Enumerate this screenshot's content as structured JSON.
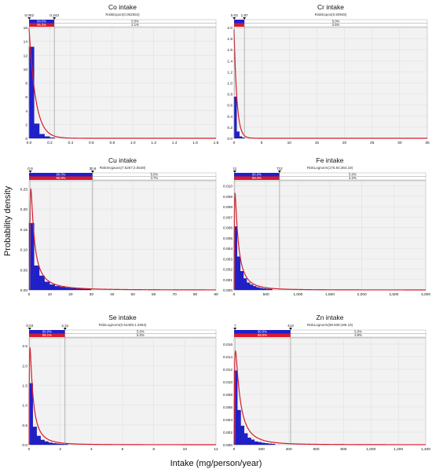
{
  "axes": {
    "ylabel": "Probability density",
    "xlabel": "Intake (mg/person/year)"
  },
  "colors": {
    "bar": "#1f1fd0",
    "curve": "#d81a2a",
    "band_top": "#1f1fd0",
    "band_bottom": "#d81a2a",
    "plot_bg": "#f2f2f2",
    "grid": "#dddddd"
  },
  "chart_data": [
    {
      "type": "bar",
      "title": "Co intake",
      "subtitle": "RiskExpon(0.062594)",
      "x_ticks": [
        "0.0",
        "0.2",
        "0.4",
        "0.6",
        "0.8",
        "1.0",
        "1.2",
        "1.4",
        "1.6",
        "1.8"
      ],
      "xlim": [
        0,
        1.8
      ],
      "y_ticks": [
        "0",
        "2",
        "4",
        "6",
        "8",
        "10",
        "12",
        "14",
        "16"
      ],
      "ylim": [
        0,
        16
      ],
      "bin_width": 0.05,
      "bins": [
        13.2,
        2.1,
        0.6,
        0.25,
        0.08
      ],
      "curve": {
        "dist": "expon",
        "params": [
          0.062594
        ]
      },
      "lower_marker": "0.002",
      "upper_marker": "0.243",
      "marker_values": [
        0.002,
        0.243
      ],
      "band": {
        "top": [
          "90.0%",
          "5.0%"
        ],
        "bottom": [
          "95.3%",
          "2.1%"
        ]
      }
    },
    {
      "type": "bar",
      "title": "Cr intake",
      "subtitle": "RiskExpon(0.50945)",
      "x_ticks": [
        "0",
        "5",
        "10",
        "15",
        "20",
        "25",
        "30",
        "35"
      ],
      "xlim": [
        0,
        35
      ],
      "y_ticks": [
        "0.0",
        "0.2",
        "0.4",
        "0.6",
        "0.8",
        "1.0",
        "1.2",
        "1.4",
        "1.6",
        "1.8",
        "2.0"
      ],
      "ylim": [
        0,
        2.0
      ],
      "bin_width": 0.5,
      "bins": [
        0.75,
        0.12,
        0.03,
        0.01
      ],
      "curve": {
        "dist": "expon",
        "params": [
          0.50945
        ]
      },
      "lower_marker": "0.03",
      "upper_marker": "1.87",
      "marker_values": [
        0.03,
        1.87
      ],
      "band": {
        "top": [
          "",
          "5.0%"
        ],
        "bottom": [
          "",
          "2.5%"
        ]
      }
    },
    {
      "type": "bar",
      "title": "Cu intake",
      "subtitle": "RiskInvgauss(7.5267;2.5549)",
      "x_ticks": [
        "0",
        "10",
        "20",
        "30",
        "40",
        "50",
        "60",
        "70",
        "80",
        "90"
      ],
      "xlim": [
        0,
        90
      ],
      "y_ticks": [
        "0.00",
        "0.05",
        "0.10",
        "0.15",
        "0.20",
        "0.25"
      ],
      "ylim": [
        0,
        0.27
      ],
      "bin_width": 2.5,
      "bins": [
        0.165,
        0.06,
        0.035,
        0.02,
        0.013,
        0.009,
        0.007,
        0.005,
        0.004,
        0.003,
        0.0025,
        0.002
      ],
      "curve": {
        "dist": "invgauss",
        "params": [
          7.5267,
          2.5549
        ]
      },
      "lower_marker": "0.6",
      "upper_marker": "30.6",
      "marker_values": [
        0.6,
        30.6
      ],
      "band": {
        "top": [
          "90.0%",
          "5.0%"
        ],
        "bottom": [
          "90.9%",
          "4.7%"
        ]
      }
    },
    {
      "type": "bar",
      "title": "Fe intake",
      "subtitle": "RiskLognorm(175.84;364.19)",
      "x_ticks": [
        "0",
        "500",
        "1,000",
        "1,500",
        "2,000",
        "2,500",
        "3,000"
      ],
      "xlim": [
        0,
        3000
      ],
      "y_ticks": [
        "0.000",
        "0.001",
        "0.002",
        "0.003",
        "0.004",
        "0.005",
        "0.006",
        "0.007",
        "0.008",
        "0.009",
        "0.010"
      ],
      "ylim": [
        0,
        0.0105
      ],
      "bin_width": 50,
      "bins": [
        0.0061,
        0.0032,
        0.0018,
        0.0011,
        0.0007,
        0.0005,
        0.00035,
        0.00025,
        0.00018,
        0.00013,
        0.0001,
        8e-05
      ],
      "curve": {
        "dist": "lognorm",
        "params": [
          175.84,
          364.19
        ]
      },
      "lower_marker": "11",
      "upper_marker": "712",
      "marker_values": [
        11,
        712
      ],
      "band": {
        "top": [
          "90.0%",
          "5.0%"
        ],
        "bottom": [
          "89.4%",
          "4.2%"
        ]
      }
    },
    {
      "type": "bar",
      "title": "Se intake",
      "subtitle": "RiskLognorm(0.64459;1.2953)",
      "x_ticks": [
        "0",
        "2",
        "4",
        "6",
        "8",
        "10",
        "12"
      ],
      "xlim": [
        0,
        12
      ],
      "y_ticks": [
        "0.0",
        "0.5",
        "1.0",
        "1.5",
        "2.0",
        "2.5"
      ],
      "ylim": [
        0,
        2.7
      ],
      "bin_width": 0.25,
      "bins": [
        1.55,
        0.45,
        0.22,
        0.12,
        0.08,
        0.05,
        0.035,
        0.025,
        0.018,
        0.012
      ],
      "curve": {
        "dist": "lognorm",
        "params": [
          0.64459,
          1.2953
        ]
      },
      "lower_marker": "0.04",
      "upper_marker": "2.31",
      "marker_values": [
        0.04,
        2.31
      ],
      "band": {
        "top": [
          "90.0%",
          "5.0%"
        ],
        "bottom": [
          "89.1%",
          "5.0%"
        ]
      }
    },
    {
      "type": "bar",
      "title": "Zn intake",
      "subtitle": "RiskLognorm(98.839;186.19)",
      "x_ticks": [
        "0",
        "200",
        "400",
        "600",
        "800",
        "1,000",
        "1,200",
        "1,400"
      ],
      "xlim": [
        0,
        1400
      ],
      "y_ticks": [
        "0.000",
        "0.002",
        "0.004",
        "0.006",
        "0.008",
        "0.010",
        "0.012",
        "0.014",
        "0.016"
      ],
      "ylim": [
        0,
        0.017
      ],
      "bin_width": 25,
      "bins": [
        0.0118,
        0.0055,
        0.003,
        0.0018,
        0.0011,
        0.0008,
        0.0005,
        0.0004,
        0.0003,
        0.00022,
        0.00016,
        0.00012
      ],
      "curve": {
        "dist": "lognorm",
        "params": [
          98.839,
          186.19
        ]
      },
      "lower_marker": "7",
      "upper_marker": "413",
      "marker_values": [
        7,
        413
      ],
      "band": {
        "top": [
          "90.0%",
          "5.0%"
        ],
        "bottom": [
          "89.0%",
          "3.9%"
        ]
      }
    }
  ]
}
